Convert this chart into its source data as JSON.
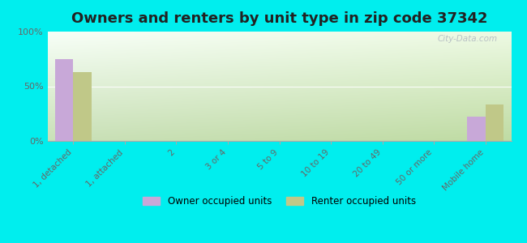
{
  "title": "Owners and renters by unit type in zip code 37342",
  "categories": [
    "1, detached",
    "1, attached",
    "2",
    "3 or 4",
    "5 to 9",
    "10 to 19",
    "20 to 49",
    "50 or more",
    "Mobile home"
  ],
  "owner_values": [
    75,
    0,
    0,
    0,
    0,
    0,
    0,
    0,
    22
  ],
  "renter_values": [
    63,
    0,
    0,
    0,
    0,
    0,
    0,
    0,
    33
  ],
  "owner_color": "#c8a8d8",
  "renter_color": "#c0c888",
  "background_color": "#00eeee",
  "ylim": [
    0,
    100
  ],
  "yticks": [
    0,
    50,
    100
  ],
  "ytick_labels": [
    "0%",
    "50%",
    "100%"
  ],
  "bar_width": 0.35,
  "legend_owner": "Owner occupied units",
  "legend_renter": "Renter occupied units",
  "title_fontsize": 13,
  "watermark": "City-Data.com"
}
